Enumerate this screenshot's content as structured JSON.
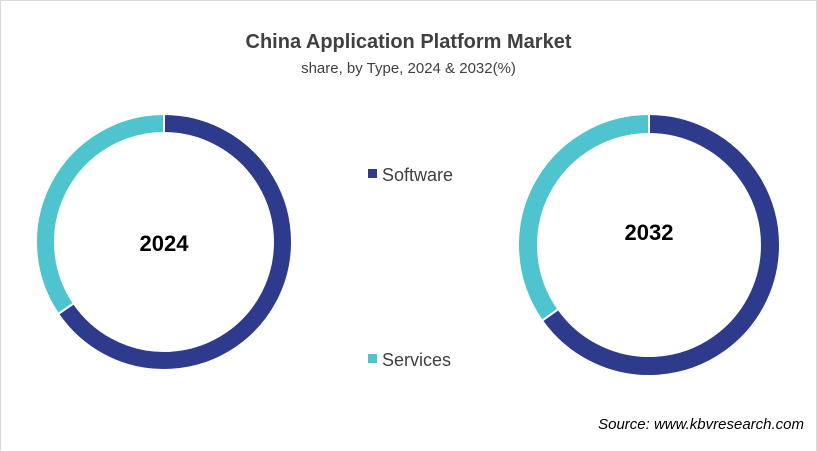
{
  "chart_data": {
    "type": "donut",
    "title": "China Application Platform Market",
    "subtitle": "share, by Type, 2024 & 2032(%)",
    "categories": [
      "Software",
      "Services"
    ],
    "colors": {
      "Software": "#2e3a8c",
      "Services": "#4fc4cf"
    },
    "series": [
      {
        "name": "2024",
        "values": [
          65.5,
          34.5
        ]
      },
      {
        "name": "2032",
        "values": [
          65.2,
          34.8
        ]
      }
    ],
    "legend": {
      "placement": "center",
      "items": [
        "Software",
        "Services"
      ]
    }
  },
  "source": "Source: www.kbvresearch.com"
}
